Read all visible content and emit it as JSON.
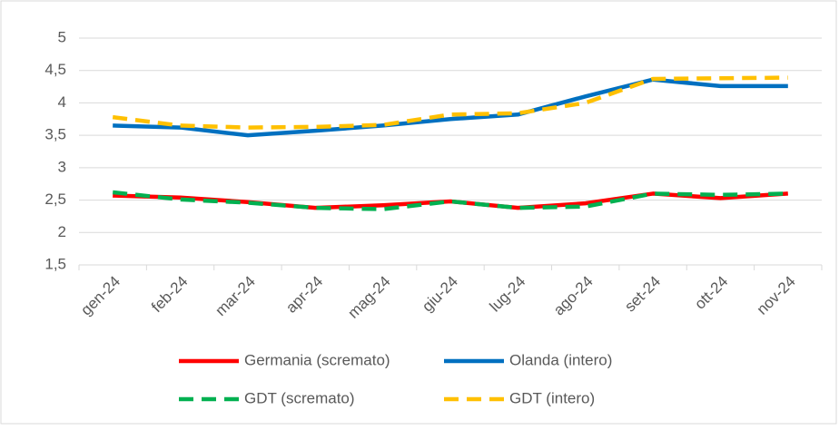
{
  "chart_data": {
    "type": "line",
    "categories": [
      "gen-24",
      "feb-24",
      "mar-24",
      "apr-24",
      "mag-24",
      "giu-24",
      "lug-24",
      "ago-24",
      "set-24",
      "ott-24",
      "nov-24"
    ],
    "series": [
      {
        "name": "Germania (scremato)",
        "color": "#ff0000",
        "line_style": "solid",
        "values": [
          2.57,
          2.54,
          2.47,
          2.38,
          2.42,
          2.48,
          2.38,
          2.45,
          2.6,
          2.53,
          2.6
        ]
      },
      {
        "name": "Olanda (intero)",
        "color": "#0070c0",
        "line_style": "solid",
        "values": [
          3.65,
          3.62,
          3.5,
          3.57,
          3.65,
          3.75,
          3.82,
          4.1,
          4.36,
          4.26,
          4.26
        ]
      },
      {
        "name": "GDT (scremato)",
        "color": "#00b050",
        "line_style": "dashed",
        "values": [
          2.62,
          2.51,
          2.46,
          2.38,
          2.36,
          2.48,
          2.38,
          2.4,
          2.6,
          2.58,
          2.6
        ]
      },
      {
        "name": "GDT (intero)",
        "color": "#ffc000",
        "line_style": "dashed",
        "values": [
          3.78,
          3.65,
          3.62,
          3.63,
          3.66,
          3.82,
          3.84,
          4.0,
          4.37,
          4.38,
          4.39
        ]
      }
    ],
    "ylim": [
      1.5,
      5
    ],
    "yticks": [
      {
        "value": 1.5,
        "label": "1,5"
      },
      2,
      {
        "value": 2.5,
        "label": "2,5"
      },
      3,
      {
        "value": 3.5,
        "label": "3,5"
      },
      4,
      {
        "value": 4.5,
        "label": "4,5"
      },
      5
    ],
    "grid": true,
    "legend": "bottom"
  }
}
